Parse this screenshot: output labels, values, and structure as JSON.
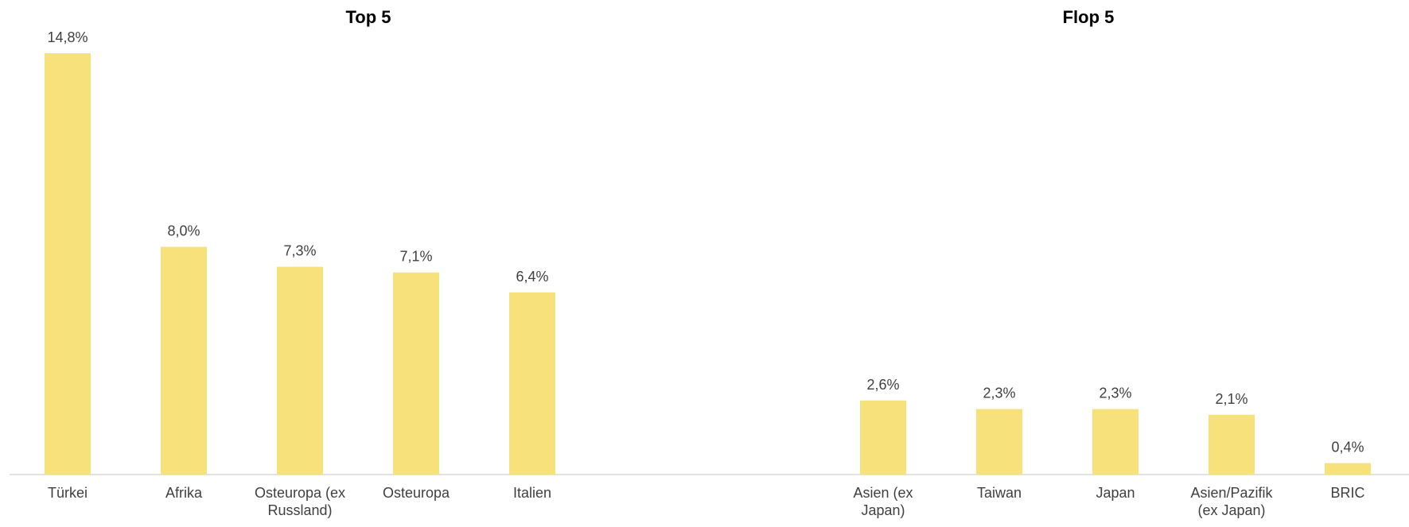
{
  "colors": {
    "bar": "#F7E17B",
    "axis": "#D9D9D9",
    "text": "#404040",
    "title": "#000000"
  },
  "chart_data": [
    {
      "type": "bar",
      "title": "Top 5",
      "categories": [
        "Türkei",
        "Afrika",
        "Osteuropa (ex Russland)",
        "Osteuropa",
        "Italien"
      ],
      "values": [
        14.8,
        8.0,
        7.3,
        7.1,
        6.4
      ],
      "value_labels": [
        "14,8%",
        "8,0%",
        "7,3%",
        "7,1%",
        "6,4%"
      ],
      "ylim": [
        0,
        14.8
      ],
      "grid": false,
      "legend": "none"
    },
    {
      "type": "bar",
      "title": "Flop 5",
      "categories": [
        "Asien (ex Japan)",
        "Taiwan",
        "Japan",
        "Asien/Pazifik (ex Japan)",
        "BRIC"
      ],
      "values": [
        2.6,
        2.3,
        2.3,
        2.1,
        0.4
      ],
      "value_labels": [
        "2,6%",
        "2,3%",
        "2,3%",
        "2,1%",
        "0,4%"
      ],
      "ylim": [
        0,
        14.8
      ],
      "grid": false,
      "legend": "none"
    }
  ]
}
